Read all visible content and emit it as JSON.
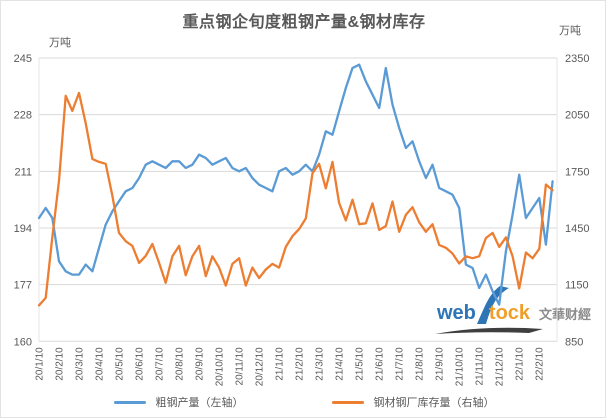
{
  "header": {
    "title": "重点钢企旬度粗钢产量&钢材库存"
  },
  "axes": {
    "left_unit": "万吨",
    "right_unit": "万吨",
    "left_tick_labels": [
      "245",
      "228",
      "211",
      "194",
      "177",
      "160"
    ],
    "right_tick_labels": [
      "2350",
      "2050",
      "1750",
      "1450",
      "1150",
      "850"
    ]
  },
  "legend": {
    "items": [
      {
        "label": "粗钢产量（左轴）",
        "color": "#5b9bd5"
      },
      {
        "label": "钢材钢厂库存量（右轴）",
        "color": "#ed7d31"
      }
    ]
  },
  "watermark": {
    "web": "web",
    "tock": "tock",
    "brand": "文華财經"
  },
  "colors": {
    "series_blue": "#5b9bd5",
    "series_orange": "#ed7d31",
    "grid": "#d9d9d9",
    "axis_text": "#595959",
    "title_text": "#595959"
  },
  "chart_data": {
    "type": "line",
    "title": "重点钢企旬度粗钢产量&钢材库存",
    "grid": "horizontal",
    "legend_position": "bottom",
    "x_tick_labels": [
      "20/1/10",
      "20/2/10",
      "20/3/10",
      "20/4/10",
      "20/5/10",
      "20/6/10",
      "20/7/10",
      "20/8/10",
      "20/9/10",
      "20/10/10",
      "20/11/10",
      "20/12/10",
      "21/1/10",
      "21/2/10",
      "21/3/10",
      "21/4/10",
      "21/5/10",
      "21/6/10",
      "21/7/10",
      "21/8/10",
      "21/9/10",
      "21/10/10",
      "21/11/10",
      "21/12/10",
      "22/1/10",
      "22/2/10"
    ],
    "points_per_tick": 3,
    "left_axis": {
      "unit": "万吨",
      "min": 160,
      "max": 245,
      "tick_step": 17,
      "ticks": [
        160,
        177,
        194,
        211,
        228,
        245
      ]
    },
    "right_axis": {
      "unit": "万吨",
      "min": 850,
      "max": 2350,
      "tick_step": 300,
      "ticks": [
        850,
        1150,
        1450,
        1750,
        2050,
        2350
      ]
    },
    "series": [
      {
        "name": "粗钢产量（左轴）",
        "axis": "left",
        "color": "#5b9bd5",
        "values": [
          197,
          200,
          197,
          184,
          181,
          180,
          180,
          183,
          181,
          188,
          195,
          199,
          202,
          205,
          206,
          209,
          213,
          214,
          213,
          212,
          214,
          214,
          212,
          213,
          216,
          215,
          213,
          214,
          215,
          212,
          211,
          212,
          209,
          207,
          206,
          205,
          211,
          212,
          210,
          211,
          213,
          211,
          216,
          223,
          222,
          229,
          236,
          242,
          243,
          238,
          234,
          230,
          242,
          231,
          224,
          218,
          220,
          214,
          209,
          213,
          206,
          205,
          204,
          200,
          183,
          182,
          176,
          180,
          175,
          171,
          187,
          198,
          210,
          197,
          200,
          203,
          189,
          208
        ]
      },
      {
        "name": "钢材钢厂库存量（右轴）",
        "axis": "right",
        "color": "#ed7d31",
        "values": [
          1040,
          1080,
          1400,
          1700,
          2150,
          2070,
          2165,
          2005,
          1815,
          1800,
          1790,
          1620,
          1424,
          1380,
          1355,
          1265,
          1302,
          1365,
          1265,
          1160,
          1300,
          1355,
          1200,
          1300,
          1355,
          1195,
          1300,
          1240,
          1145,
          1260,
          1290,
          1145,
          1240,
          1185,
          1230,
          1260,
          1240,
          1350,
          1407,
          1444,
          1500,
          1740,
          1790,
          1660,
          1800,
          1583,
          1490,
          1600,
          1470,
          1475,
          1580,
          1440,
          1460,
          1590,
          1430,
          1520,
          1560,
          1480,
          1430,
          1470,
          1360,
          1345,
          1315,
          1262,
          1300,
          1290,
          1300,
          1397,
          1424,
          1350,
          1400,
          1300,
          1130,
          1320,
          1290,
          1340,
          1680,
          1650
        ]
      }
    ]
  }
}
